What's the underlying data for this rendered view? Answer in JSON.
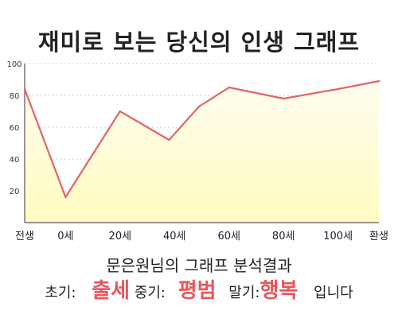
{
  "title": "재미로 보는 당신의 인생 그래프",
  "chart_data": {
    "type": "area",
    "categories": [
      "전생",
      "0세",
      "20세",
      "40세",
      "60세",
      "80세",
      "100세",
      "환생"
    ],
    "x": [
      -15,
      0,
      20,
      40,
      60,
      80,
      100,
      115
    ],
    "points": [
      {
        "x": -15,
        "y": 84
      },
      {
        "x": 0,
        "y": 16
      },
      {
        "x": 20,
        "y": 70
      },
      {
        "x": 38,
        "y": 52
      },
      {
        "x": 49,
        "y": 73
      },
      {
        "x": 60,
        "y": 85
      },
      {
        "x": 80,
        "y": 78
      },
      {
        "x": 100,
        "y": 84
      },
      {
        "x": 115,
        "y": 89
      }
    ],
    "xlim": [
      -15,
      115
    ],
    "ylim": [
      0,
      100
    ],
    "yticks": [
      20,
      40,
      60,
      80,
      100
    ],
    "grid": "dashed horizontal",
    "colors": {
      "line": "#e06666",
      "fill_top": "#fffdf0",
      "fill_bottom": "#fffbc0",
      "axis": "#777777"
    }
  },
  "summary": {
    "caption": "문은원님의 그래프 분석결과",
    "early_label": "초기:",
    "early_value": "출세",
    "mid_label": "중기:",
    "mid_value": "평범",
    "late_label": "말기:",
    "late_value": "행복",
    "ending": "입니다",
    "accent_color": "#e8575b"
  }
}
